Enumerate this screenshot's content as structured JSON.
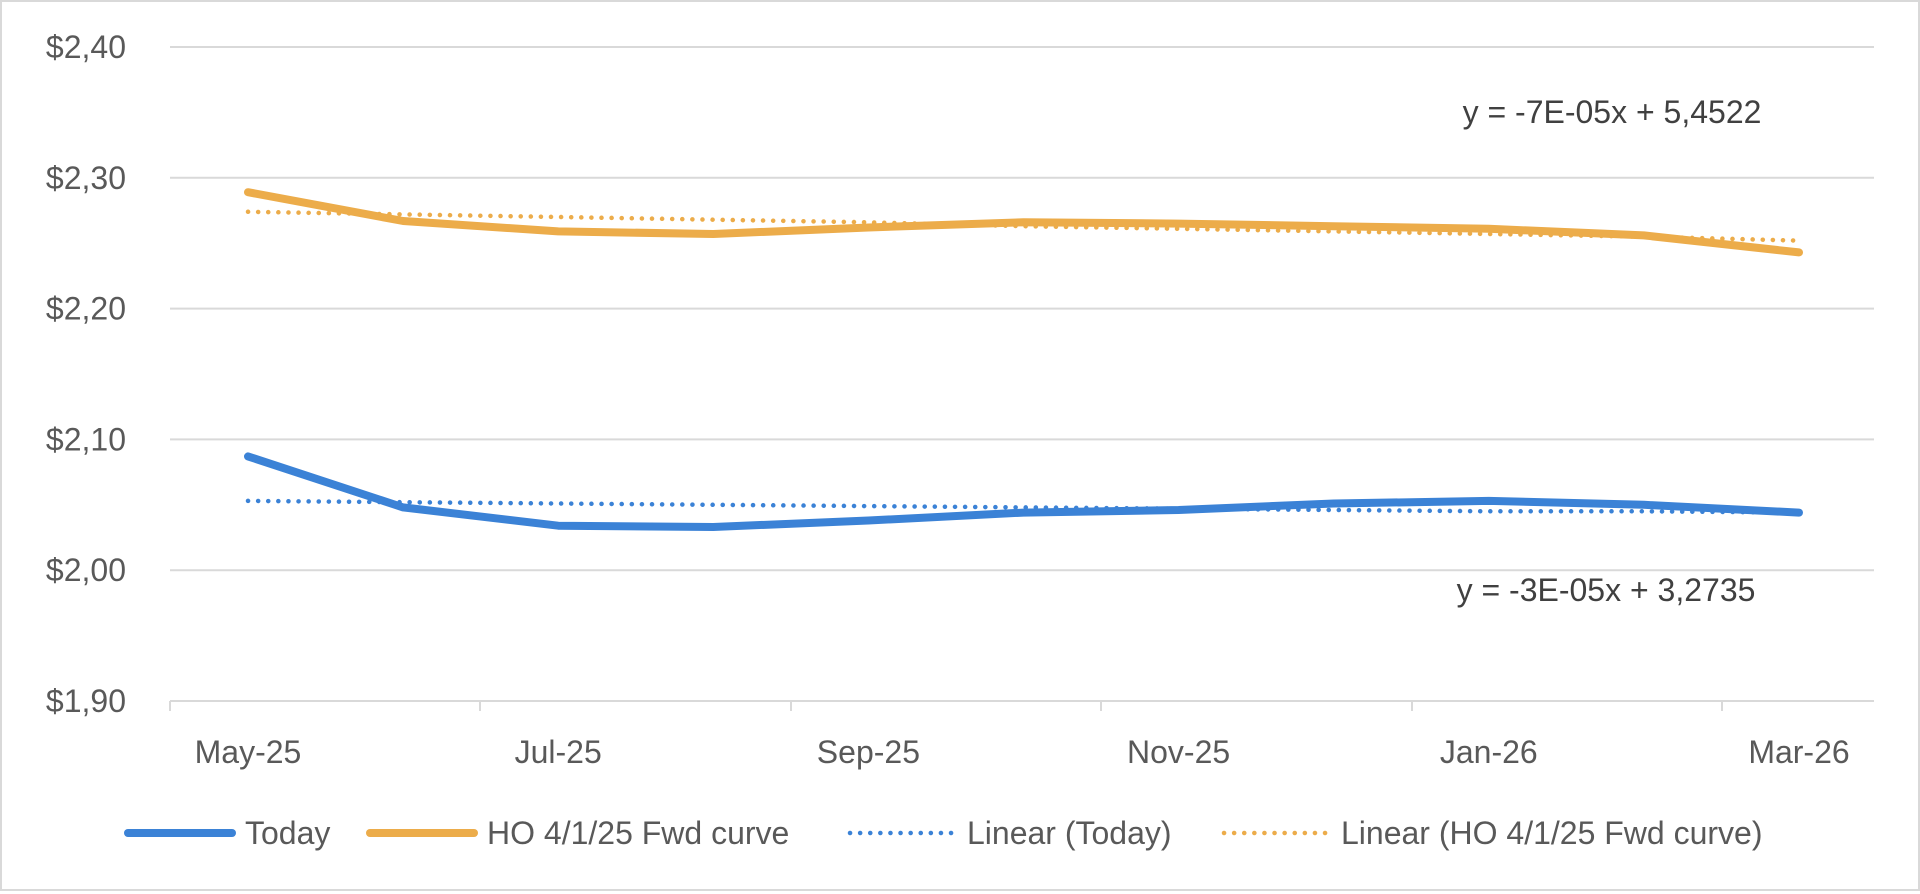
{
  "chart_data": {
    "type": "line",
    "title": "",
    "xlabel": "",
    "ylabel": "",
    "categories": [
      "May-25",
      "Jun-25",
      "Jul-25",
      "Aug-25",
      "Sep-25",
      "Oct-25",
      "Nov-25",
      "Dec-25",
      "Jan-26",
      "Feb-26",
      "Mar-26"
    ],
    "x_tick_labels": [
      "May-25",
      "Jul-25",
      "Sep-25",
      "Nov-25",
      "Jan-26",
      "Mar-26"
    ],
    "y_tick_labels": [
      "$2,40",
      "$2,30",
      "$2,20",
      "$2,10",
      "$2,00",
      "$1,90"
    ],
    "ylim": [
      1.9,
      2.4
    ],
    "grid": "horizontal",
    "legend_position": "bottom",
    "series": [
      {
        "name": "Today",
        "style": "solid",
        "color": "#3b82d6",
        "values": [
          2.087,
          2.048,
          2.034,
          2.033,
          2.038,
          2.044,
          2.046,
          2.051,
          2.053,
          2.05,
          2.044
        ]
      },
      {
        "name": "HO 4/1/25 Fwd curve",
        "style": "solid",
        "color": "#ecac4a",
        "values": [
          2.289,
          2.267,
          2.259,
          2.257,
          2.262,
          2.266,
          2.265,
          2.263,
          2.261,
          2.256,
          2.243
        ]
      },
      {
        "name": "Linear (Today)",
        "style": "dotted",
        "color": "#3b82d6",
        "values": [
          2.053,
          2.052,
          2.051,
          2.05,
          2.049,
          2.048,
          2.047,
          2.046,
          2.045,
          2.045,
          2.044
        ]
      },
      {
        "name": "Linear (HO 4/1/25 Fwd curve)",
        "style": "dotted",
        "color": "#ecac4a",
        "values": [
          2.274,
          2.272,
          2.27,
          2.268,
          2.266,
          2.263,
          2.261,
          2.259,
          2.257,
          2.255,
          2.252
        ]
      }
    ],
    "annotations": [
      {
        "text": "y = -7E-05x + 5,4522",
        "series": "Linear (HO 4/1/25 Fwd curve)"
      },
      {
        "text": "y = -3E-05x + 3,2735",
        "series": "Linear (Today)"
      }
    ]
  }
}
